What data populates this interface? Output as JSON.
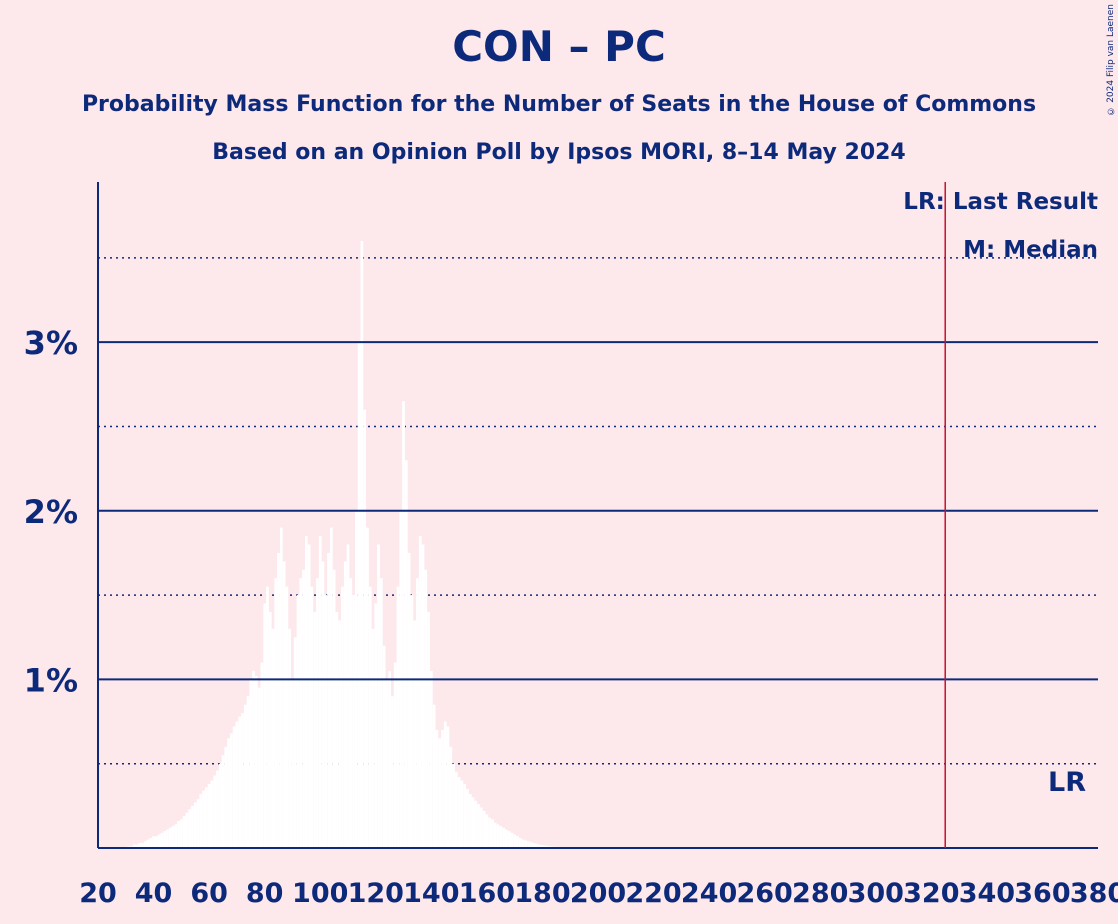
{
  "title": "CON – PC",
  "subtitle1": "Probability Mass Function for the Number of Seats in the House of Commons",
  "subtitle2": "Based on an Opinion Poll by Ipsos MORI, 8–14 May 2024",
  "copyright": "© 2024 Filip van Laenen",
  "colors": {
    "background": "#FDE8EC",
    "text": "#0D2A7A",
    "bars": "#FFFFFF",
    "last_result": "#C8102E"
  },
  "chart_data": {
    "type": "bar",
    "xlim": [
      20,
      380
    ],
    "ylim": [
      0,
      3.95
    ],
    "x_ticks": [
      20,
      40,
      60,
      80,
      100,
      120,
      140,
      160,
      180,
      200,
      220,
      240,
      260,
      280,
      300,
      320,
      340,
      360,
      380
    ],
    "x_tick_labels": [
      "20",
      "40",
      "60",
      "80",
      "100",
      "120",
      "140",
      "160",
      "180",
      "200",
      "220",
      "240",
      "260",
      "280",
      "300",
      "320",
      "340",
      "360",
      "380"
    ],
    "y_major_ticks": [
      1,
      2,
      3
    ],
    "y_tick_labels": [
      "1%",
      "2%",
      "3%"
    ],
    "y_minor_ticks": [
      0.5,
      1.5,
      2.5,
      3.5
    ],
    "last_result": 325,
    "last_result_label": "LR",
    "legend": {
      "last_result": "LR: Last Result",
      "median": "M: Median"
    },
    "x": [
      31,
      32,
      33,
      34,
      35,
      36,
      37,
      38,
      39,
      40,
      41,
      42,
      43,
      44,
      45,
      46,
      47,
      48,
      49,
      50,
      51,
      52,
      53,
      54,
      55,
      56,
      57,
      58,
      59,
      60,
      61,
      62,
      63,
      64,
      65,
      66,
      67,
      68,
      69,
      70,
      71,
      72,
      73,
      74,
      75,
      76,
      77,
      78,
      79,
      80,
      81,
      82,
      83,
      84,
      85,
      86,
      87,
      88,
      89,
      90,
      91,
      92,
      93,
      94,
      95,
      96,
      97,
      98,
      99,
      100,
      101,
      102,
      103,
      104,
      105,
      106,
      107,
      108,
      109,
      110,
      111,
      112,
      113,
      114,
      115,
      116,
      117,
      118,
      119,
      120,
      121,
      122,
      123,
      124,
      125,
      126,
      127,
      128,
      129,
      130,
      131,
      132,
      133,
      134,
      135,
      136,
      137,
      138,
      139,
      140,
      141,
      142,
      143,
      144,
      145,
      146,
      147,
      148,
      149,
      150,
      151,
      152,
      153,
      154,
      155,
      156,
      157,
      158,
      159,
      160,
      161,
      162,
      163,
      164,
      165,
      166,
      167,
      168,
      169,
      170,
      171,
      172,
      173,
      174,
      175,
      176,
      177,
      178,
      179,
      180,
      181,
      182,
      183,
      184,
      185,
      186,
      187,
      188,
      189,
      190,
      191,
      192,
      193,
      194,
      195
    ],
    "values": [
      0.01,
      0.01,
      0.02,
      0.02,
      0.03,
      0.03,
      0.04,
      0.05,
      0.06,
      0.07,
      0.07,
      0.08,
      0.09,
      0.1,
      0.11,
      0.12,
      0.13,
      0.14,
      0.16,
      0.17,
      0.19,
      0.21,
      0.23,
      0.25,
      0.27,
      0.29,
      0.32,
      0.34,
      0.36,
      0.38,
      0.4,
      0.43,
      0.46,
      0.5,
      0.55,
      0.6,
      0.65,
      0.68,
      0.72,
      0.75,
      0.78,
      0.8,
      0.85,
      0.9,
      1.0,
      1.05,
      1.02,
      0.95,
      1.1,
      1.45,
      1.55,
      1.4,
      1.3,
      1.6,
      1.75,
      1.9,
      1.7,
      1.55,
      1.3,
      1.0,
      1.25,
      1.5,
      1.6,
      1.65,
      1.85,
      1.8,
      1.55,
      1.4,
      1.6,
      1.85,
      1.7,
      1.5,
      1.75,
      1.9,
      1.65,
      1.4,
      1.35,
      1.55,
      1.7,
      1.8,
      1.6,
      1.5,
      2.0,
      3.0,
      3.6,
      2.6,
      1.9,
      1.55,
      1.3,
      1.45,
      1.8,
      1.6,
      1.2,
      1.0,
      1.05,
      0.9,
      1.1,
      1.55,
      2.0,
      2.65,
      2.3,
      1.75,
      1.5,
      1.35,
      1.6,
      1.85,
      1.8,
      1.65,
      1.4,
      1.05,
      0.85,
      0.7,
      0.65,
      0.7,
      0.75,
      0.72,
      0.6,
      0.5,
      0.45,
      0.42,
      0.4,
      0.38,
      0.35,
      0.32,
      0.3,
      0.28,
      0.26,
      0.24,
      0.22,
      0.2,
      0.18,
      0.17,
      0.15,
      0.14,
      0.13,
      0.12,
      0.11,
      0.1,
      0.09,
      0.08,
      0.07,
      0.06,
      0.05,
      0.045,
      0.04,
      0.035,
      0.03,
      0.025,
      0.02,
      0.018,
      0.015,
      0.012,
      0.01,
      0.008,
      0.007,
      0.006,
      0.005,
      0.004,
      0.003,
      0.002,
      0.002,
      0.001,
      0.001,
      0.001,
      0.001
    ]
  }
}
